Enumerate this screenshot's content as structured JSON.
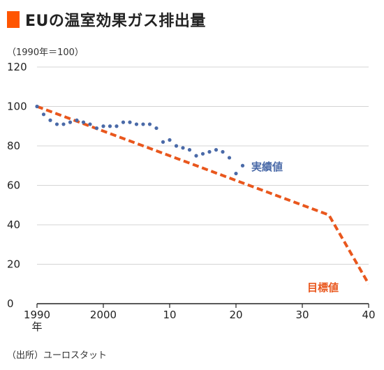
{
  "colors": {
    "title_mark": "#ff5500",
    "actual": "#4a6aa8",
    "target": "#e9571d",
    "grid": "#d4d4d4",
    "axis": "#222222"
  },
  "chart_data": {
    "type": "line",
    "title": "EUの温室効果ガス排出量",
    "unit": "（1990年＝100）",
    "source": "（出所）ユーロスタット",
    "x_ticks": [
      "1990",
      "2000",
      "10",
      "20",
      "30",
      "40"
    ],
    "x_tick_values": [
      1990,
      2000,
      2010,
      2020,
      2030,
      2040
    ],
    "x_year_suffix": "年",
    "y_ticks": [
      "120",
      "100",
      "80",
      "60",
      "40",
      "20",
      "0"
    ],
    "y_tick_values": [
      120,
      100,
      80,
      60,
      40,
      20,
      0
    ],
    "xlim": [
      1990,
      2040
    ],
    "ylim": [
      0,
      120
    ],
    "grid": true,
    "series": [
      {
        "name": "実績値",
        "style": "dotted",
        "x": [
          1990,
          1991,
          1992,
          1993,
          1994,
          1995,
          1996,
          1997,
          1998,
          1999,
          2000,
          2001,
          2002,
          2003,
          2004,
          2005,
          2006,
          2007,
          2008,
          2009,
          2010,
          2011,
          2012,
          2013,
          2014,
          2015,
          2016,
          2017,
          2018,
          2019,
          2020,
          2021
        ],
        "y": [
          100,
          96,
          93,
          91,
          91,
          92,
          93,
          92,
          91,
          89,
          90,
          90,
          90,
          92,
          92,
          91,
          91,
          91,
          89,
          82,
          83,
          80,
          79,
          78,
          75,
          76,
          77,
          78,
          77,
          74,
          66,
          70
        ]
      },
      {
        "name": "目標値",
        "style": "dashed",
        "x": [
          1990,
          2034,
          2040
        ],
        "y": [
          100,
          45,
          10
        ]
      }
    ]
  }
}
